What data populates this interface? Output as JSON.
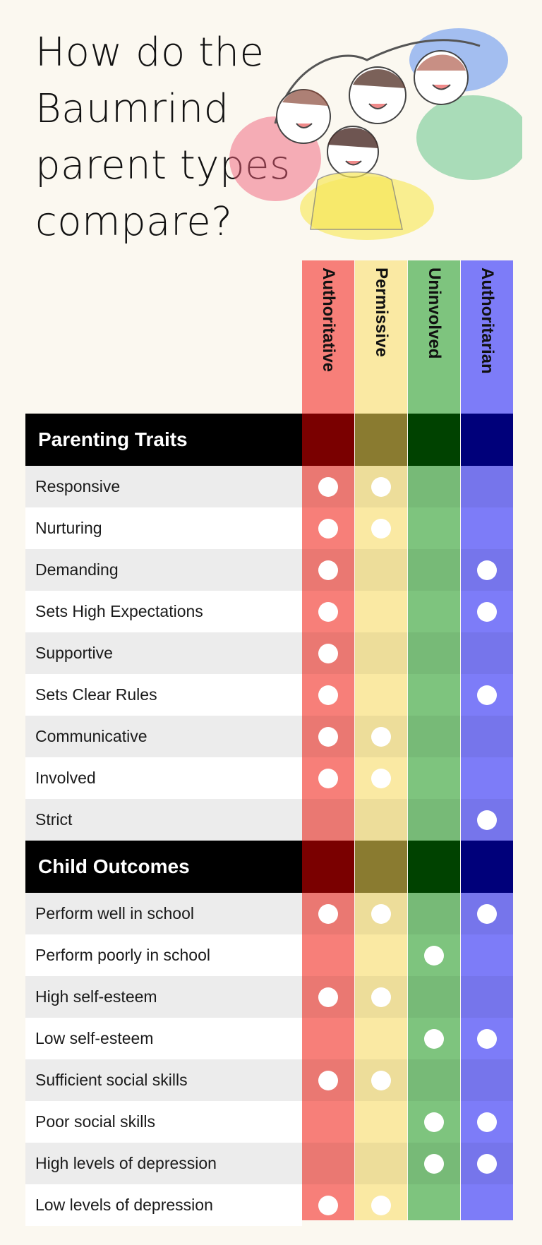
{
  "title": "How do the Baumrind parent types compare?",
  "columns": [
    {
      "name": "Authoritative",
      "color": "#f77f79",
      "dark": "#7a0000"
    },
    {
      "name": "Permissive",
      "color": "#fae9a3",
      "dark": "#8a7b30"
    },
    {
      "name": "Uninvolved",
      "color": "#7ec47e",
      "dark": "#004200"
    },
    {
      "name": "Authoritarian",
      "color": "#7d7cf8",
      "dark": "#00007a"
    }
  ],
  "sections": [
    {
      "label": "Parenting Traits",
      "rows": [
        {
          "label": "Responsive",
          "marks": [
            true,
            true,
            false,
            false
          ]
        },
        {
          "label": "Nurturing",
          "marks": [
            true,
            true,
            false,
            false
          ]
        },
        {
          "label": "Demanding",
          "marks": [
            true,
            false,
            false,
            true
          ]
        },
        {
          "label": "Sets High Expectations",
          "marks": [
            true,
            false,
            false,
            true
          ]
        },
        {
          "label": "Supportive",
          "marks": [
            true,
            false,
            false,
            false
          ]
        },
        {
          "label": "Sets Clear Rules",
          "marks": [
            true,
            false,
            false,
            true
          ]
        },
        {
          "label": "Communicative",
          "marks": [
            true,
            true,
            false,
            false
          ]
        },
        {
          "label": "Involved",
          "marks": [
            true,
            true,
            false,
            false
          ]
        },
        {
          "label": "Strict",
          "marks": [
            false,
            false,
            false,
            true
          ]
        }
      ]
    },
    {
      "label": "Child Outcomes",
      "rows": [
        {
          "label": "Perform well in school",
          "marks": [
            true,
            true,
            false,
            true
          ]
        },
        {
          "label": "Perform poorly in school",
          "marks": [
            false,
            false,
            true,
            false
          ]
        },
        {
          "label": "High self-esteem",
          "marks": [
            true,
            true,
            false,
            false
          ]
        },
        {
          "label": "Low self-esteem",
          "marks": [
            false,
            false,
            true,
            true
          ]
        },
        {
          "label": "Sufficient social skills",
          "marks": [
            true,
            true,
            false,
            false
          ]
        },
        {
          "label": "Poor social skills",
          "marks": [
            false,
            false,
            true,
            true
          ]
        },
        {
          "label": "High levels of depression",
          "marks": [
            false,
            false,
            true,
            true
          ]
        },
        {
          "label": "Low levels of depression",
          "marks": [
            true,
            true,
            false,
            false
          ]
        }
      ]
    }
  ]
}
